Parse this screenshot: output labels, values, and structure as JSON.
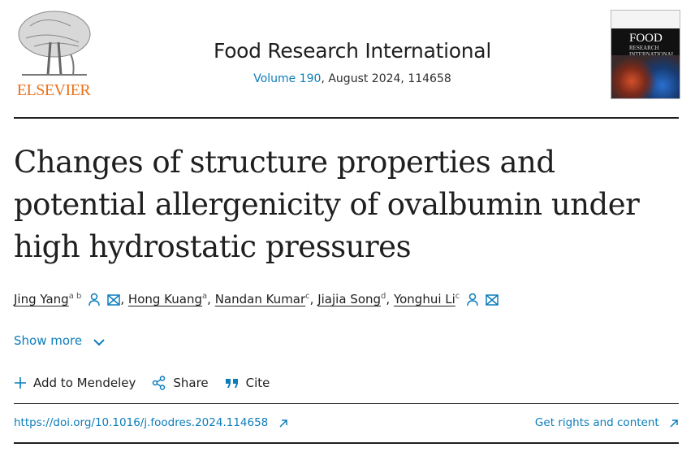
{
  "publisher": {
    "logo_text": "ELSEVIER"
  },
  "journal": {
    "title": "Food Research International",
    "volume_link": "Volume 190",
    "issue_rest": ", August 2024, 114658"
  },
  "cover": {
    "title": "FOOD",
    "subtitle": "RESEARCH INTERNATIONAL"
  },
  "article": {
    "title": "Changes of structure properties and potential allergenicity of ovalbumin under high hydrostatic pressures"
  },
  "authors": [
    {
      "name": "Jing Yang",
      "sup": "a b",
      "icons": true
    },
    {
      "name": "Hong Kuang",
      "sup": "a"
    },
    {
      "name": "Nandan Kumar",
      "sup": "c"
    },
    {
      "name": "Jiajia Song",
      "sup": "d"
    },
    {
      "name": "Yonghui Li",
      "sup": "c",
      "icons": true
    }
  ],
  "show_more": "Show more",
  "actions": {
    "mendeley": "Add to Mendeley",
    "share": "Share",
    "cite": "Cite"
  },
  "doi": "https://doi.org/10.1016/j.foodres.2024.114658",
  "rights": "Get rights and content",
  "colors": {
    "link": "#0c7dbb",
    "elsevier_orange": "#e9711c"
  }
}
